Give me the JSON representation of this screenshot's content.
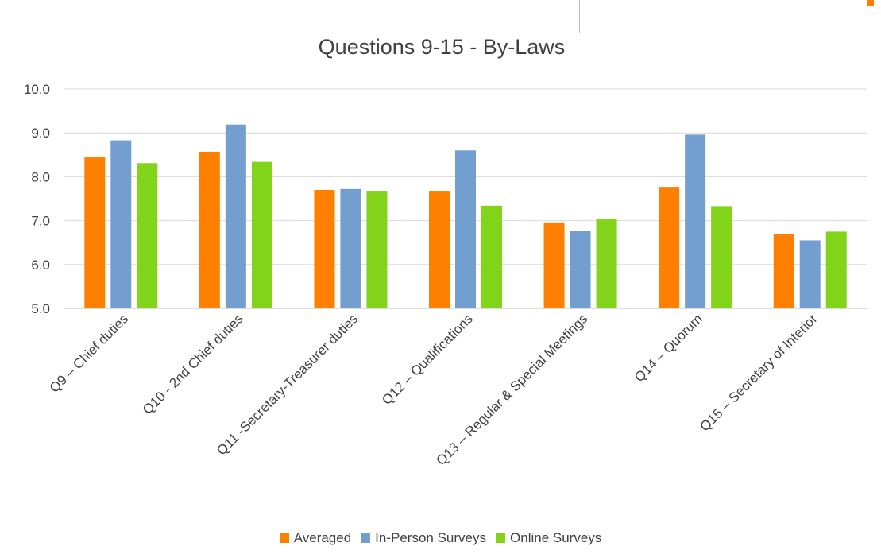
{
  "overlay": {
    "accent_color": "#FF8000"
  },
  "chart_data": {
    "type": "bar",
    "title": "Questions 9-15 - By-Laws",
    "xlabel": "",
    "ylabel": "",
    "ylim": [
      5.0,
      10.0
    ],
    "yticks": [
      "5.0",
      "6.0",
      "7.0",
      "8.0",
      "9.0",
      "10.0"
    ],
    "grid": true,
    "legend_position": "bottom",
    "categories": [
      "Q9 – Chief duties",
      "Q10 - 2nd Chief duties",
      "Q11 -Secretary-Treasurer duties",
      "Q12 – Qualifications",
      "Q13 – Regular & Special Meetings",
      "Q14 – Quorum",
      "Q15 – Secretary of Interior"
    ],
    "series": [
      {
        "name": "Averaged",
        "color": "#FF8000",
        "values": [
          8.45,
          8.57,
          7.7,
          7.68,
          6.96,
          7.77,
          6.7
        ]
      },
      {
        "name": "In-Person Surveys",
        "color": "#729FCF",
        "values": [
          8.83,
          9.19,
          7.72,
          8.6,
          6.77,
          8.96,
          6.55
        ]
      },
      {
        "name": "Online Surveys",
        "color": "#81D41A",
        "values": [
          8.31,
          8.34,
          7.68,
          7.34,
          7.04,
          7.33,
          6.75
        ]
      }
    ]
  }
}
